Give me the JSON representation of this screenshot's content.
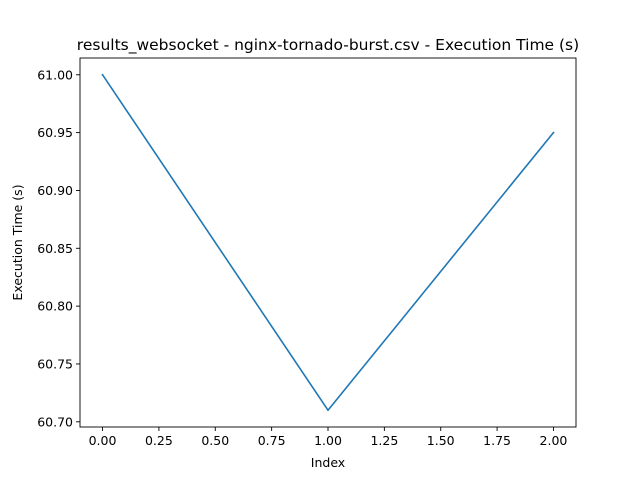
{
  "chart_data": {
    "type": "line",
    "title": "results_websocket - nginx-tornado-burst.csv - Execution Time (s)",
    "xlabel": "Index",
    "ylabel": "Execution Time (s)",
    "xlim": [
      -0.1,
      2.1
    ],
    "ylim": [
      60.6955,
      61.0145
    ],
    "grid": false,
    "x_ticks": [
      0.0,
      0.25,
      0.5,
      0.75,
      1.0,
      1.25,
      1.5,
      1.75,
      2.0
    ],
    "x_tick_labels": [
      "0.00",
      "0.25",
      "0.50",
      "0.75",
      "1.00",
      "1.25",
      "1.50",
      "1.75",
      "2.00"
    ],
    "y_ticks": [
      60.7,
      60.75,
      60.8,
      60.85,
      60.9,
      60.95,
      61.0
    ],
    "y_tick_labels": [
      "60.70",
      "60.75",
      "60.80",
      "60.85",
      "60.90",
      "60.95",
      "61.00"
    ],
    "series": [
      {
        "color": "#1f77b4",
        "x": [
          0,
          1,
          2
        ],
        "values": [
          61.0,
          60.71,
          60.95
        ]
      }
    ]
  }
}
